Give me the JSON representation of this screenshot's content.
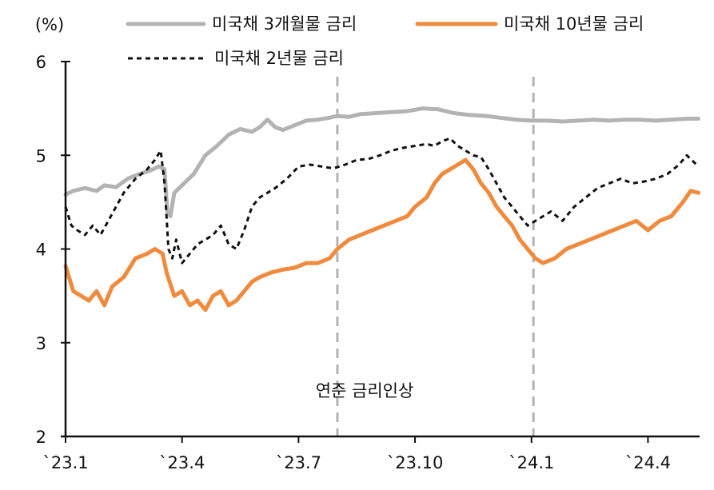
{
  "chart_data": {
    "type": "line",
    "unit_label": "(%)",
    "ylim": [
      2,
      6
    ],
    "yticks": [
      2,
      3,
      4,
      5,
      6
    ],
    "x_domain": [
      0,
      16.33
    ],
    "xticks": [
      {
        "x": 0,
        "label": "`23.1"
      },
      {
        "x": 3,
        "label": "`23.4"
      },
      {
        "x": 6,
        "label": "`23.7"
      },
      {
        "x": 9,
        "label": "`23.10"
      },
      {
        "x": 12,
        "label": "`24.1"
      },
      {
        "x": 15,
        "label": "`24.4"
      }
    ],
    "vlines": [
      {
        "x": 7,
        "label": "연준 금리인상"
      },
      {
        "x": 12.05,
        "label": ""
      }
    ],
    "annotation": "연준 금리인상",
    "series": [
      {
        "name": "미국채 3개월물 금리",
        "color": "#b3b3b3",
        "style": "solid",
        "x": [
          0,
          0.2,
          0.5,
          0.8,
          1.0,
          1.3,
          1.6,
          1.9,
          2.2,
          2.4,
          2.55,
          2.62,
          2.7,
          2.8,
          3.0,
          3.3,
          3.6,
          3.9,
          4.2,
          4.5,
          4.8,
          5.0,
          5.2,
          5.4,
          5.6,
          5.9,
          6.2,
          6.5,
          6.8,
          7.0,
          7.3,
          7.6,
          8.0,
          8.4,
          8.8,
          9.2,
          9.6,
          10.0,
          10.4,
          10.8,
          11.2,
          11.6,
          12.0,
          12.4,
          12.8,
          13.2,
          13.6,
          14.0,
          14.4,
          14.8,
          15.2,
          15.6,
          16.0,
          16.3
        ],
        "values": [
          4.58,
          4.62,
          4.65,
          4.62,
          4.68,
          4.66,
          4.75,
          4.8,
          4.84,
          4.88,
          4.85,
          4.4,
          4.35,
          4.6,
          4.68,
          4.8,
          5.0,
          5.1,
          5.22,
          5.28,
          5.25,
          5.3,
          5.38,
          5.3,
          5.27,
          5.32,
          5.37,
          5.38,
          5.4,
          5.42,
          5.41,
          5.44,
          5.45,
          5.46,
          5.47,
          5.5,
          5.49,
          5.45,
          5.43,
          5.42,
          5.4,
          5.38,
          5.37,
          5.37,
          5.36,
          5.37,
          5.38,
          5.37,
          5.38,
          5.38,
          5.37,
          5.38,
          5.39,
          5.39
        ]
      },
      {
        "name": "미국채 10년물 금리",
        "color": "#f08a3c",
        "style": "solid",
        "x": [
          0,
          0.2,
          0.4,
          0.6,
          0.8,
          1.0,
          1.2,
          1.5,
          1.8,
          2.1,
          2.3,
          2.5,
          2.6,
          2.8,
          3.0,
          3.2,
          3.4,
          3.6,
          3.8,
          4.0,
          4.2,
          4.4,
          4.6,
          4.8,
          5.0,
          5.3,
          5.6,
          5.9,
          6.2,
          6.5,
          6.8,
          7.0,
          7.3,
          7.6,
          7.9,
          8.2,
          8.5,
          8.8,
          9.0,
          9.3,
          9.5,
          9.7,
          9.9,
          10.1,
          10.3,
          10.5,
          10.7,
          10.9,
          11.1,
          11.3,
          11.5,
          11.7,
          11.9,
          12.1,
          12.3,
          12.6,
          12.9,
          13.2,
          13.5,
          13.8,
          14.1,
          14.4,
          14.7,
          15.0,
          15.3,
          15.6,
          15.9,
          16.1,
          16.3
        ],
        "values": [
          3.82,
          3.55,
          3.5,
          3.45,
          3.55,
          3.4,
          3.6,
          3.7,
          3.9,
          3.95,
          4.0,
          3.95,
          3.75,
          3.5,
          3.55,
          3.4,
          3.45,
          3.35,
          3.5,
          3.55,
          3.4,
          3.45,
          3.55,
          3.65,
          3.7,
          3.75,
          3.78,
          3.8,
          3.85,
          3.85,
          3.9,
          4.0,
          4.1,
          4.15,
          4.2,
          4.25,
          4.3,
          4.35,
          4.45,
          4.55,
          4.7,
          4.8,
          4.85,
          4.9,
          4.95,
          4.85,
          4.7,
          4.6,
          4.45,
          4.35,
          4.25,
          4.1,
          4.0,
          3.9,
          3.85,
          3.9,
          4.0,
          4.05,
          4.1,
          4.15,
          4.2,
          4.25,
          4.3,
          4.2,
          4.3,
          4.35,
          4.5,
          4.62,
          4.6
        ]
      },
      {
        "name": "미국채 2년물 금리",
        "color": "#111111",
        "style": "dashed",
        "x": [
          0,
          0.15,
          0.3,
          0.5,
          0.7,
          0.9,
          1.1,
          1.3,
          1.5,
          1.8,
          2.1,
          2.3,
          2.45,
          2.55,
          2.65,
          2.75,
          2.85,
          3.0,
          3.2,
          3.4,
          3.6,
          3.8,
          4.0,
          4.2,
          4.4,
          4.6,
          4.8,
          5.0,
          5.2,
          5.4,
          5.7,
          6.0,
          6.3,
          6.6,
          6.9,
          7.2,
          7.5,
          7.8,
          8.1,
          8.4,
          8.7,
          9.0,
          9.3,
          9.5,
          9.7,
          9.9,
          10.1,
          10.3,
          10.5,
          10.7,
          10.9,
          11.1,
          11.3,
          11.5,
          11.7,
          11.9,
          12.1,
          12.3,
          12.5,
          12.8,
          13.1,
          13.4,
          13.7,
          14.0,
          14.3,
          14.6,
          14.9,
          15.2,
          15.5,
          15.8,
          16.0,
          16.3
        ],
        "values": [
          4.45,
          4.25,
          4.2,
          4.15,
          4.25,
          4.15,
          4.3,
          4.45,
          4.6,
          4.75,
          4.85,
          4.95,
          5.05,
          4.7,
          4.0,
          3.9,
          4.1,
          3.85,
          3.95,
          4.05,
          4.1,
          4.15,
          4.25,
          4.05,
          4.0,
          4.2,
          4.45,
          4.55,
          4.6,
          4.65,
          4.75,
          4.88,
          4.9,
          4.88,
          4.86,
          4.9,
          4.95,
          4.96,
          5.0,
          5.05,
          5.08,
          5.1,
          5.12,
          5.1,
          5.15,
          5.18,
          5.1,
          5.05,
          5.0,
          4.98,
          4.85,
          4.7,
          4.55,
          4.45,
          4.35,
          4.25,
          4.3,
          4.35,
          4.4,
          4.3,
          4.45,
          4.55,
          4.65,
          4.7,
          4.75,
          4.7,
          4.72,
          4.75,
          4.8,
          4.9,
          5.0,
          4.88
        ]
      }
    ]
  }
}
